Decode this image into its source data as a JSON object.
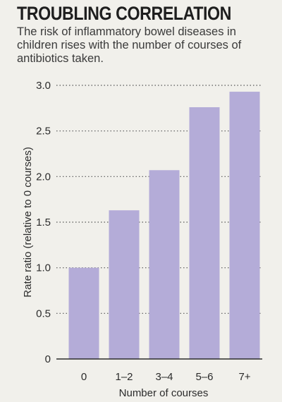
{
  "title": "TROUBLING CORRELATION",
  "subtitle": "The risk of inflammatory bowel diseases in children rises with the number of courses of antibiotics taken.",
  "colors": {
    "bar": "#b4acd8",
    "background": "#f1f0eb",
    "grid": "#555555"
  },
  "chart_data": {
    "type": "bar",
    "categories": [
      "0",
      "1–2",
      "3–4",
      "5–6",
      "7+"
    ],
    "values": [
      1.0,
      1.63,
      2.07,
      2.76,
      2.93
    ],
    "xlabel": "Number of courses",
    "ylabel": "Rate ratio (relative to 0 courses)",
    "ylim": [
      0,
      3.0
    ],
    "yticks": [
      0,
      0.5,
      1.0,
      1.5,
      2.0,
      2.5,
      3.0
    ],
    "ytick_labels": [
      "0",
      "0.5",
      "1.0",
      "1.5",
      "2.0",
      "2.5",
      "3.0"
    ],
    "grid": true
  }
}
